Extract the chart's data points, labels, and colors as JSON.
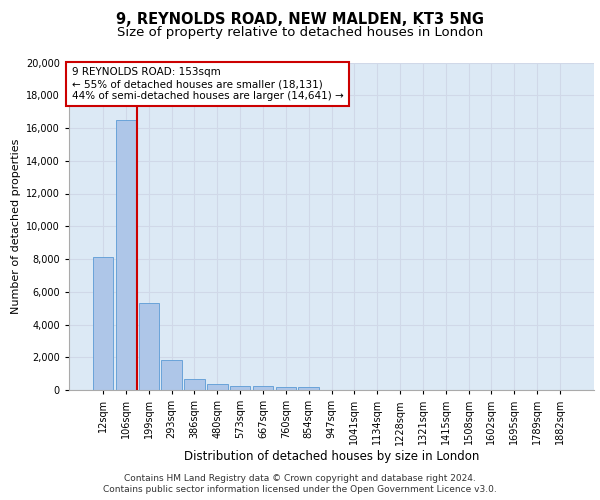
{
  "title1": "9, REYNOLDS ROAD, NEW MALDEN, KT3 5NG",
  "title2": "Size of property relative to detached houses in London",
  "xlabel": "Distribution of detached houses by size in London",
  "ylabel": "Number of detached properties",
  "categories": [
    "12sqm",
    "106sqm",
    "199sqm",
    "293sqm",
    "386sqm",
    "480sqm",
    "573sqm",
    "667sqm",
    "760sqm",
    "854sqm",
    "947sqm",
    "1041sqm",
    "1134sqm",
    "1228sqm",
    "1321sqm",
    "1415sqm",
    "1508sqm",
    "1602sqm",
    "1695sqm",
    "1789sqm",
    "1882sqm"
  ],
  "bar_heights": [
    8100,
    16500,
    5300,
    1850,
    650,
    350,
    270,
    220,
    200,
    180,
    0,
    0,
    0,
    0,
    0,
    0,
    0,
    0,
    0,
    0,
    0
  ],
  "bar_color": "#aec6e8",
  "bar_edge_color": "#5b9bd5",
  "grid_color": "#d0d8e8",
  "background_color": "#dce9f5",
  "vline_x": 1.5,
  "vline_color": "#cc0000",
  "annotation_line1": "9 REYNOLDS ROAD: 153sqm",
  "annotation_line2": "← 55% of detached houses are smaller (18,131)",
  "annotation_line3": "44% of semi-detached houses are larger (14,641) →",
  "annotation_box_color": "#ffffff",
  "annotation_border_color": "#cc0000",
  "ylim": [
    0,
    20000
  ],
  "yticks": [
    0,
    2000,
    4000,
    6000,
    8000,
    10000,
    12000,
    14000,
    16000,
    18000,
    20000
  ],
  "footer_line1": "Contains HM Land Registry data © Crown copyright and database right 2024.",
  "footer_line2": "Contains public sector information licensed under the Open Government Licence v3.0.",
  "title1_fontsize": 10.5,
  "title2_fontsize": 9.5,
  "xlabel_fontsize": 8.5,
  "ylabel_fontsize": 8,
  "tick_fontsize": 7,
  "annotation_fontsize": 7.5,
  "footer_fontsize": 6.5
}
